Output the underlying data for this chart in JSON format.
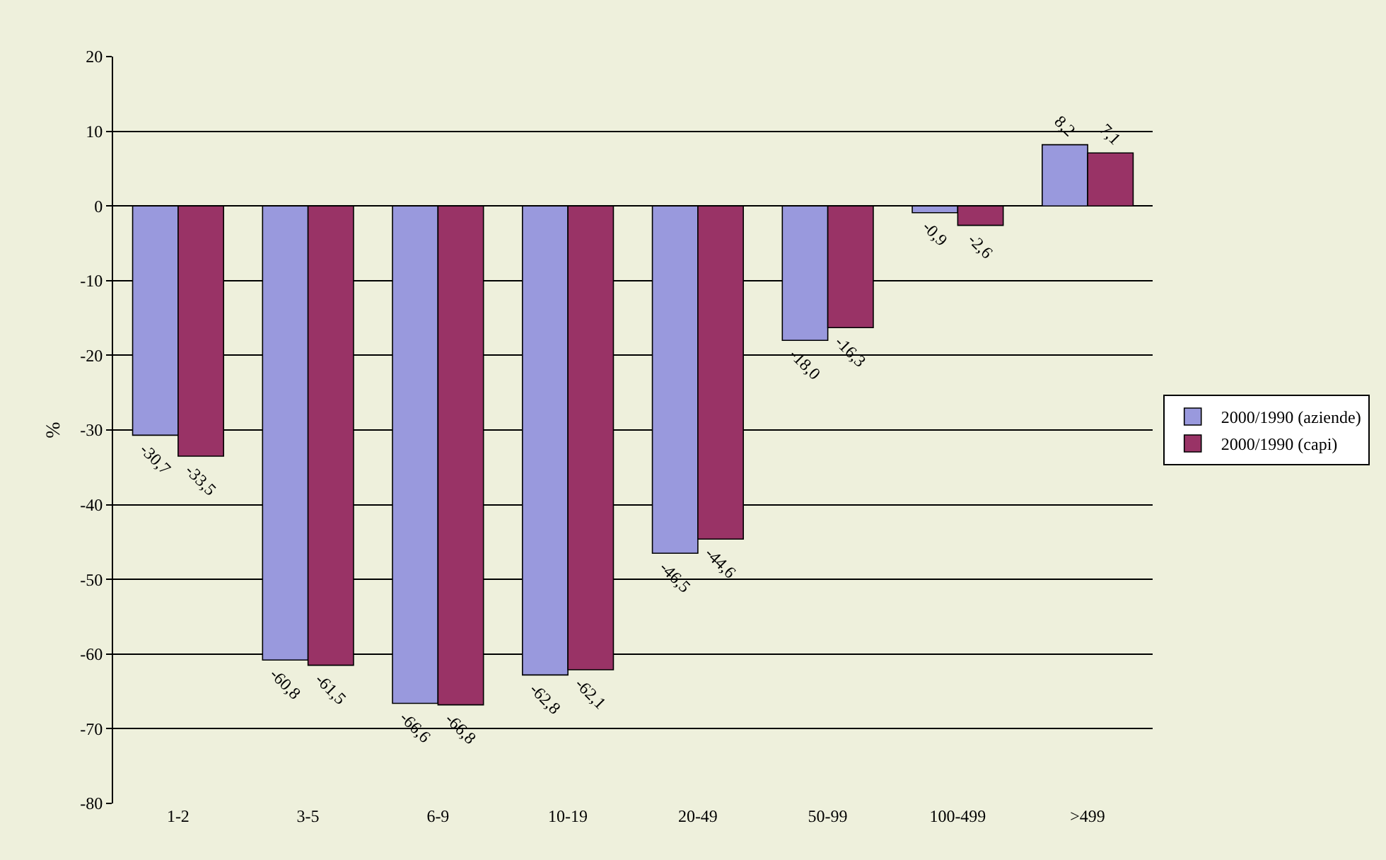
{
  "chart_data": {
    "type": "bar",
    "ylabel": "%",
    "categories": [
      "1-2",
      "3-5",
      "6-9",
      "10-19",
      "20-49",
      "50-99",
      "100-499",
      ">499"
    ],
    "series": [
      {
        "name": "2000/1990 (aziende)",
        "color": "#9999dd",
        "values": [
          -30.7,
          -60.8,
          -66.6,
          -62.8,
          -46.5,
          -18.0,
          -0.9,
          8.2
        ],
        "value_labels": [
          "-30,7",
          "-60,8",
          "-66,6",
          "-62,8",
          "-46,5",
          "-18,0",
          "-0,9",
          "8,2"
        ]
      },
      {
        "name": "2000/1990 (capi)",
        "color": "#993366",
        "values": [
          -33.5,
          -61.5,
          -66.8,
          -62.1,
          -44.6,
          -16.3,
          -2.6,
          7.1
        ],
        "value_labels": [
          "-33,5",
          "-61,5",
          "-66,8",
          "-62,1",
          "-44,6",
          "-16,3",
          "-2,6",
          "7,1"
        ]
      }
    ],
    "ylim": [
      -80,
      20
    ],
    "yticks": [
      -80,
      -70,
      -60,
      -50,
      -40,
      -30,
      -20,
      -10,
      0,
      10,
      20
    ],
    "grid": "y",
    "legend": "right"
  }
}
